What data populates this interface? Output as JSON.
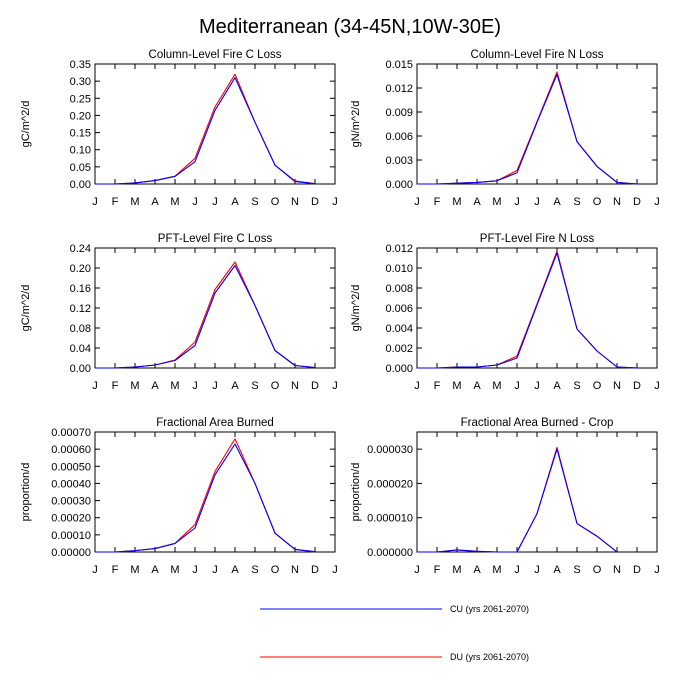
{
  "figure_title": "Mediterranean (34-45N,10W-30E)",
  "colors": {
    "CU": "#0000ff",
    "DU": "#ff0000"
  },
  "legend": [
    {
      "key": "CU",
      "label": "CU (yrs 2061-2070)"
    },
    {
      "key": "DU",
      "label": "DU (yrs 2061-2070)"
    }
  ],
  "chart_data": [
    {
      "type": "line",
      "title": "Column-Level Fire C Loss",
      "ylabel": "gC/m^2/d",
      "categories": [
        "J",
        "F",
        "M",
        "A",
        "M",
        "J",
        "J",
        "A",
        "S",
        "O",
        "N",
        "D",
        "J"
      ],
      "ylim": [
        0,
        0.35
      ],
      "yticks": [
        "0.00",
        "0.05",
        "0.10",
        "0.15",
        "0.20",
        "0.25",
        "0.30",
        "0.35"
      ],
      "series": [
        {
          "name": "CU",
          "values": [
            0.0,
            0.0,
            0.003,
            0.01,
            0.022,
            0.065,
            0.215,
            0.31,
            0.18,
            0.055,
            0.007,
            0.001,
            null
          ]
        },
        {
          "name": "DU",
          "values": [
            0.0,
            0.0,
            0.003,
            0.01,
            0.023,
            0.075,
            0.225,
            0.32,
            0.18,
            0.055,
            0.009,
            0.001,
            null
          ]
        }
      ]
    },
    {
      "type": "line",
      "title": "Column-Level Fire N Loss",
      "ylabel": "gN/m^2/d",
      "categories": [
        "J",
        "F",
        "M",
        "A",
        "M",
        "J",
        "J",
        "A",
        "S",
        "O",
        "N",
        "D",
        "J"
      ],
      "ylim": [
        0,
        0.015
      ],
      "yticks": [
        "0.000",
        "0.003",
        "0.006",
        "0.009",
        "0.012",
        "0.015"
      ],
      "series": [
        {
          "name": "CU",
          "values": [
            0.0,
            0.0,
            0.0001,
            0.0002,
            0.0004,
            0.0014,
            0.0077,
            0.0137,
            0.0053,
            0.0022,
            0.0002,
            0.0,
            null
          ]
        },
        {
          "name": "DU",
          "values": [
            0.0,
            0.0,
            0.0001,
            0.0002,
            0.0004,
            0.0017,
            0.0078,
            0.014,
            0.0053,
            0.0022,
            0.0002,
            0.0,
            null
          ]
        }
      ]
    },
    {
      "type": "line",
      "title": "PFT-Level Fire C Loss",
      "ylabel": "gC/m^2/d",
      "categories": [
        "J",
        "F",
        "M",
        "A",
        "M",
        "J",
        "J",
        "A",
        "S",
        "O",
        "N",
        "D",
        "J"
      ],
      "ylim": [
        0,
        0.24
      ],
      "yticks": [
        "0.00",
        "0.04",
        "0.08",
        "0.12",
        "0.16",
        "0.20",
        "0.24"
      ],
      "series": [
        {
          "name": "CU",
          "values": [
            0.0,
            0.0,
            0.002,
            0.006,
            0.015,
            0.045,
            0.15,
            0.205,
            0.125,
            0.035,
            0.005,
            0.001,
            null
          ]
        },
        {
          "name": "DU",
          "values": [
            0.0,
            0.0,
            0.002,
            0.006,
            0.016,
            0.052,
            0.157,
            0.212,
            0.125,
            0.035,
            0.005,
            0.001,
            null
          ]
        }
      ]
    },
    {
      "type": "line",
      "title": "PFT-Level Fire N Loss",
      "ylabel": "gN/m^2/d",
      "categories": [
        "J",
        "F",
        "M",
        "A",
        "M",
        "J",
        "J",
        "A",
        "S",
        "O",
        "N",
        "D",
        "J"
      ],
      "ylim": [
        0,
        0.012
      ],
      "yticks": [
        "0.000",
        "0.002",
        "0.004",
        "0.006",
        "0.008",
        "0.010",
        "0.012"
      ],
      "series": [
        {
          "name": "CU",
          "values": [
            0.0,
            0.0,
            0.0001,
            0.0001,
            0.0003,
            0.001,
            0.0063,
            0.0115,
            0.0039,
            0.0017,
            0.0001,
            0.0,
            null
          ]
        },
        {
          "name": "DU",
          "values": [
            0.0,
            0.0,
            0.0001,
            0.0001,
            0.0003,
            0.0012,
            0.0064,
            0.0117,
            0.0039,
            0.0017,
            0.0001,
            0.0,
            null
          ]
        }
      ]
    },
    {
      "type": "line",
      "title": "Fractional Area Burned",
      "ylabel": "proportion/d",
      "categories": [
        "J",
        "F",
        "M",
        "A",
        "M",
        "J",
        "J",
        "A",
        "S",
        "O",
        "N",
        "D",
        "J"
      ],
      "ylim": [
        0,
        0.0007
      ],
      "yticks": [
        "0.00000",
        "0.00010",
        "0.00020",
        "0.00030",
        "0.00040",
        "0.00050",
        "0.00060",
        "0.00070"
      ],
      "series": [
        {
          "name": "CU",
          "values": [
            0.0,
            0.0,
            8e-06,
            2e-05,
            5e-05,
            0.00014,
            0.00045,
            0.00063,
            0.0004,
            0.00011,
            1.5e-05,
            2e-06,
            null
          ]
        },
        {
          "name": "DU",
          "values": [
            0.0,
            0.0,
            8e-06,
            2e-05,
            5e-05,
            0.00016,
            0.00047,
            0.00066,
            0.0004,
            0.00011,
            1.5e-05,
            2e-06,
            null
          ]
        }
      ]
    },
    {
      "type": "line",
      "title": "Fractional Area Burned - Crop",
      "ylabel": "proportion/d",
      "categories": [
        "J",
        "F",
        "M",
        "A",
        "M",
        "J",
        "J",
        "A",
        "S",
        "O",
        "N",
        "D",
        "J"
      ],
      "ylim": [
        0,
        3.5e-05
      ],
      "yticks": [
        "0.000000",
        "0.000010",
        "0.000020",
        "0.000030"
      ],
      "series": [
        {
          "name": "CU",
          "values": [
            0.0,
            0.0,
            6e-07,
            2e-07,
            0.0,
            0.0,
            1.12e-05,
            3e-05,
            8.3e-06,
            4.6e-06,
            0.0,
            null,
            null
          ]
        },
        {
          "name": "DU",
          "values": [
            0.0,
            0.0,
            6e-07,
            2e-07,
            0.0,
            0.0,
            1.12e-05,
            3.05e-05,
            8.3e-06,
            4.6e-06,
            0.0,
            null,
            null
          ]
        }
      ]
    }
  ]
}
